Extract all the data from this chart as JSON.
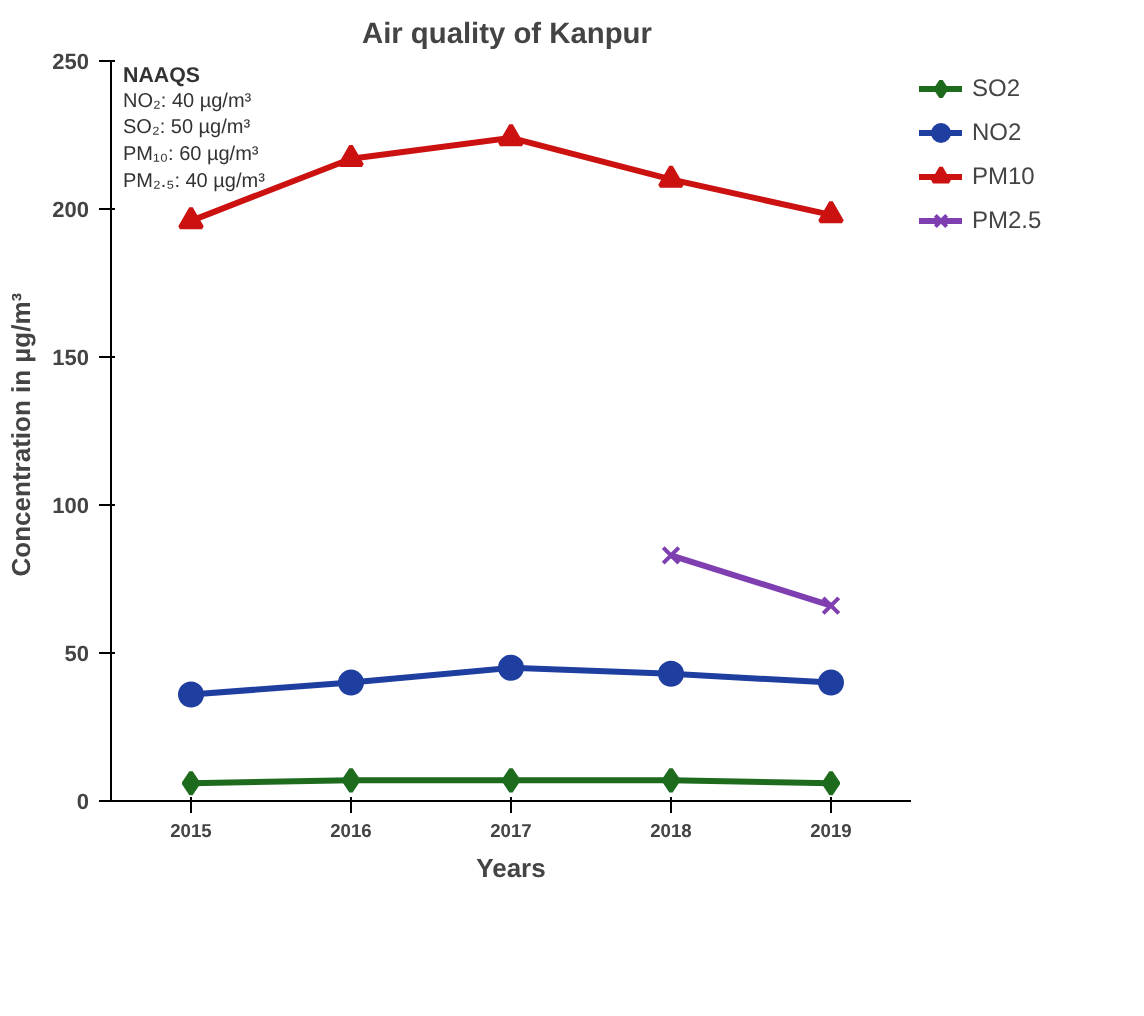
{
  "chart_data": {
    "type": "line",
    "title": "Air quality of  Kanpur",
    "xlabel": "Years",
    "ylabel": "Concentration in  µg/m³",
    "categories": [
      "2015",
      "2016",
      "2017",
      "2018",
      "2019"
    ],
    "series": [
      {
        "name": "SO2",
        "color": "#1e6b1e",
        "marker": "diamond",
        "values": [
          6,
          7,
          7,
          7,
          6
        ]
      },
      {
        "name": "NO2",
        "color": "#1f3fa0",
        "marker": "circle",
        "values": [
          36,
          40,
          45,
          43,
          40
        ]
      },
      {
        "name": "PM10",
        "color": "#cc1111",
        "marker": "triangle",
        "values": [
          196,
          217,
          224,
          210,
          198
        ]
      },
      {
        "name": "PM2.5",
        "color": "#7f3fb0",
        "marker": "cross",
        "values": [
          null,
          null,
          null,
          83,
          66
        ]
      }
    ],
    "ylim": [
      0,
      250
    ],
    "yticks": [
      0,
      50,
      100,
      150,
      200,
      250
    ],
    "grid": false,
    "legend": "top right",
    "annotations": [
      "NAAQS",
      "NO₂: 40 µg/m³",
      "SO₂: 50 µg/m³",
      "PM₁₀: 60 µg/m³",
      "PM₂.₅: 40 µg/m³"
    ]
  }
}
